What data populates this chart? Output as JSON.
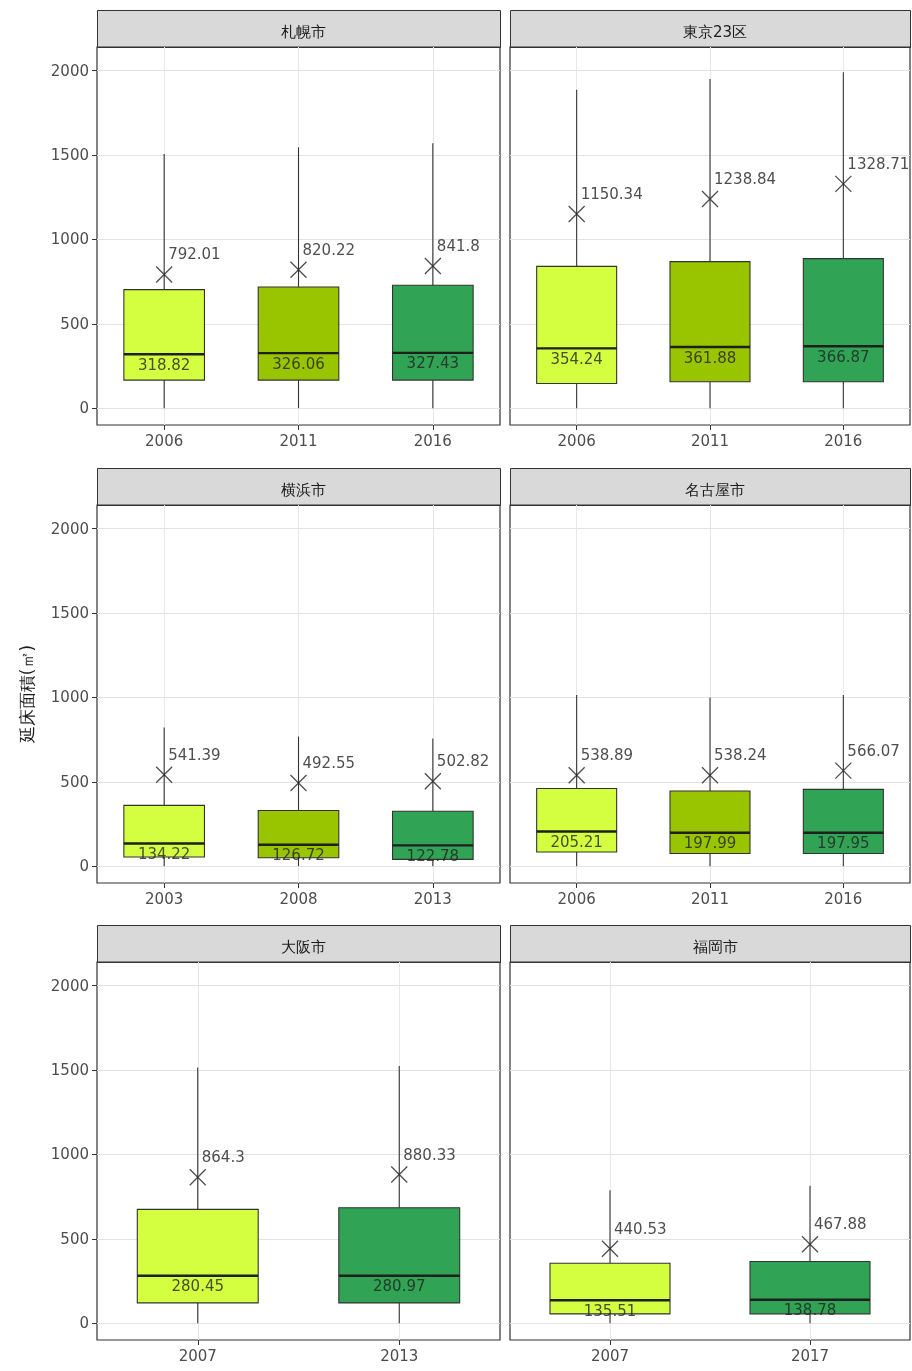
{
  "chart_data": [
    {
      "type": "box",
      "title": "札幌市",
      "categories": [
        "2006",
        "2011",
        "2016"
      ],
      "colors": [
        "#d4ff40",
        "#99c400",
        "#31a354"
      ],
      "marker": "cross",
      "grid": true,
      "ylim": [
        -100,
        2140
      ],
      "yticks": [
        0,
        500,
        1000,
        1500,
        2000
      ],
      "boxes": [
        {
          "low": 0,
          "q1": 166,
          "median": 318.82,
          "q3": 702,
          "high": 1506,
          "mean": 792.01
        },
        {
          "low": 0,
          "q1": 166,
          "median": 326.06,
          "q3": 718,
          "high": 1546,
          "mean": 820.22
        },
        {
          "low": 0,
          "q1": 166,
          "median": 327.43,
          "q3": 728,
          "high": 1570,
          "mean": 841.8
        }
      ],
      "annotations": [
        {
          "text": "318.82",
          "x": "2006",
          "y": 318.82
        },
        {
          "text": "326.06",
          "x": "2011",
          "y": 326.06
        },
        {
          "text": "327.43",
          "x": "2016",
          "y": 327.43
        },
        {
          "text": "792.01",
          "x": "2006",
          "y": 792.01
        },
        {
          "text": "820.22",
          "x": "2011",
          "y": 820.22
        },
        {
          "text": "841.8",
          "x": "2016",
          "y": 841.8
        }
      ]
    },
    {
      "type": "box",
      "title": "東京23区",
      "categories": [
        "2006",
        "2011",
        "2016"
      ],
      "colors": [
        "#d4ff40",
        "#99c400",
        "#31a354"
      ],
      "marker": "cross",
      "grid": true,
      "tick_labels": "x",
      "ylim": [
        -100,
        2140
      ],
      "yticks": [
        0,
        500,
        1000,
        1500,
        2000
      ],
      "boxes": [
        {
          "low": 0,
          "q1": 146,
          "median": 354.24,
          "q3": 840,
          "high": 1886,
          "mean": 1150.34
        },
        {
          "low": 0,
          "q1": 156,
          "median": 361.88,
          "q3": 868,
          "high": 1950,
          "mean": 1238.84
        },
        {
          "low": 0,
          "q1": 156,
          "median": 366.87,
          "q3": 886,
          "high": 1990,
          "mean": 1328.71
        }
      ],
      "annotations": [
        {
          "text": "354.24",
          "x": "2006",
          "y": 354.24
        },
        {
          "text": "361.88",
          "x": "2011",
          "y": 361.88
        },
        {
          "text": "366.87",
          "x": "2016",
          "y": 366.87
        },
        {
          "text": "1150.34",
          "x": "2006",
          "y": 1150.34
        },
        {
          "text": "1238.84",
          "x": "2011",
          "y": 1238.84
        },
        {
          "text": "1328.71",
          "x": "2016",
          "y": 1328.71
        }
      ]
    },
    {
      "type": "box",
      "title": "横浜市",
      "ylabel": "延床面積(㎡)",
      "categories": [
        "2003",
        "2008",
        "2013"
      ],
      "colors": [
        "#d4ff40",
        "#99c400",
        "#31a354"
      ],
      "marker": "cross",
      "grid": true,
      "ylim": [
        -100,
        2140
      ],
      "yticks": [
        0,
        500,
        1000,
        1500,
        2000
      ],
      "boxes": [
        {
          "low": 0,
          "q1": 54,
          "median": 134.22,
          "q3": 360,
          "high": 822,
          "mean": 541.39
        },
        {
          "low": 0,
          "q1": 50,
          "median": 126.72,
          "q3": 330,
          "high": 768,
          "mean": 492.55
        },
        {
          "low": 0,
          "q1": 40,
          "median": 122.78,
          "q3": 325,
          "high": 756,
          "mean": 502.82
        }
      ],
      "annotations": [
        {
          "text": "134.22",
          "x": "2003",
          "y": 134.22
        },
        {
          "text": "126.72",
          "x": "2008",
          "y": 126.72
        },
        {
          "text": "122.78",
          "x": "2013",
          "y": 122.78
        },
        {
          "text": "541.39",
          "x": "2003",
          "y": 541.39
        },
        {
          "text": "492.55",
          "x": "2008",
          "y": 492.55
        },
        {
          "text": "502.82",
          "x": "2013",
          "y": 502.82
        }
      ]
    },
    {
      "type": "box",
      "title": "名古屋市",
      "categories": [
        "2006",
        "2011",
        "2016"
      ],
      "colors": [
        "#d4ff40",
        "#99c400",
        "#31a354"
      ],
      "marker": "cross",
      "grid": true,
      "tick_labels": "x",
      "ylim": [
        -100,
        2140
      ],
      "yticks": [
        0,
        500,
        1000,
        1500,
        2000
      ],
      "boxes": [
        {
          "low": 0,
          "q1": 84,
          "median": 205.21,
          "q3": 460,
          "high": 1014,
          "mean": 538.89
        },
        {
          "low": 0,
          "q1": 75,
          "median": 197.99,
          "q3": 445,
          "high": 1000,
          "mean": 538.24
        },
        {
          "low": 0,
          "q1": 75,
          "median": 197.95,
          "q3": 455,
          "high": 1014,
          "mean": 566.07
        }
      ],
      "annotations": [
        {
          "text": "205.21",
          "x": "2006",
          "y": 205.21
        },
        {
          "text": "197.99",
          "x": "2011",
          "y": 197.99
        },
        {
          "text": "197.95",
          "x": "2016",
          "y": 197.95
        },
        {
          "text": "538.89",
          "x": "2006",
          "y": 538.89
        },
        {
          "text": "538.24",
          "x": "2011",
          "y": 538.24
        },
        {
          "text": "566.07",
          "x": "2016",
          "y": 566.07
        }
      ]
    },
    {
      "type": "box",
      "title": "大阪市",
      "categories": [
        "2007",
        "2013"
      ],
      "colors": [
        "#d4ff40",
        "#31a354"
      ],
      "marker": "cross",
      "grid": true,
      "ylim": [
        -100,
        2140
      ],
      "yticks": [
        0,
        500,
        1000,
        1500,
        2000
      ],
      "boxes": [
        {
          "low": 0,
          "q1": 120,
          "median": 280.45,
          "q3": 674,
          "high": 1515,
          "mean": 864.3
        },
        {
          "low": 0,
          "q1": 120,
          "median": 280.97,
          "q3": 684,
          "high": 1524,
          "mean": 880.33
        }
      ],
      "annotations": [
        {
          "text": "280.45",
          "x": "2007",
          "y": 280.45
        },
        {
          "text": "280.97",
          "x": "2013",
          "y": 280.97
        },
        {
          "text": "864.3",
          "x": "2007",
          "y": 864.3
        },
        {
          "text": "880.33",
          "x": "2013",
          "y": 880.33
        }
      ]
    },
    {
      "type": "box",
      "title": "福岡市",
      "categories": [
        "2007",
        "2017"
      ],
      "colors": [
        "#d4ff40",
        "#31a354"
      ],
      "marker": "cross",
      "grid": true,
      "tick_labels": "x",
      "ylim": [
        -100,
        2140
      ],
      "yticks": [
        0,
        500,
        1000,
        1500,
        2000
      ],
      "boxes": [
        {
          "low": 0,
          "q1": 55,
          "median": 135.51,
          "q3": 355,
          "high": 788,
          "mean": 440.53
        },
        {
          "low": 0,
          "q1": 55,
          "median": 138.78,
          "q3": 365,
          "high": 814,
          "mean": 467.88
        }
      ],
      "annotations": [
        {
          "text": "135.51",
          "x": "2007",
          "y": 135.51
        },
        {
          "text": "138.78",
          "x": "2017",
          "y": 138.78
        },
        {
          "text": "440.53",
          "x": "2007",
          "y": 440.53
        },
        {
          "text": "467.88",
          "x": "2017",
          "y": 467.88
        }
      ]
    }
  ]
}
